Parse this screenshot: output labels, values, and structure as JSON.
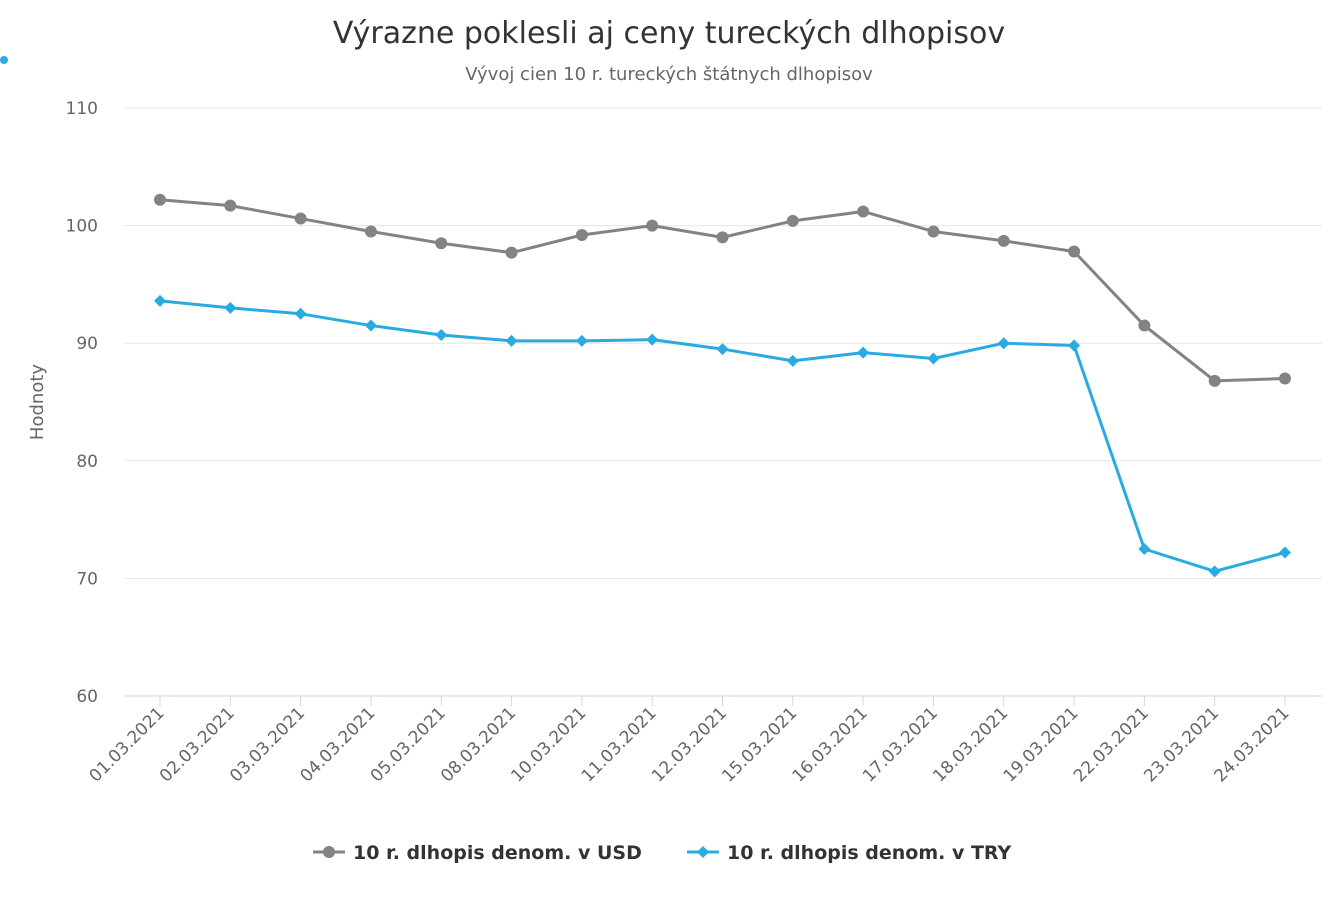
{
  "chart_data": {
    "type": "line",
    "title": "Výrazne poklesli aj ceny tureckých dlhopisov",
    "subtitle": "Vývoj cien 10 r. tureckých štátnych dlhopisov",
    "ylabel": "Hodnoty",
    "xlabel": "",
    "ylim": [
      60,
      110
    ],
    "yticks": [
      110,
      100,
      90,
      80,
      70,
      60
    ],
    "grid": true,
    "legend_position": "bottom",
    "categories": [
      "01.03.2021",
      "02.03.2021",
      "03.03.2021",
      "04.03.2021",
      "05.03.2021",
      "08.03.2021",
      "10.03.2021",
      "11.03.2021",
      "12.03.2021",
      "15.03.2021",
      "16.03.2021",
      "17.03.2021",
      "18.03.2021",
      "19.03.2021",
      "22.03.2021",
      "23.03.2021",
      "24.03.2021"
    ],
    "series": [
      {
        "name": "10 r. dlhopis denom. v USD",
        "color": "#828387",
        "marker": "circle",
        "values": [
          102.2,
          101.7,
          100.6,
          99.5,
          98.5,
          97.7,
          99.2,
          100.0,
          99.0,
          100.4,
          101.2,
          99.5,
          98.7,
          97.8,
          91.5,
          86.8,
          87.0
        ]
      },
      {
        "name": "10 r. dlhopis denom. v TRY",
        "color": "#29abe2",
        "marker": "diamond",
        "values": [
          93.6,
          93.0,
          92.5,
          91.5,
          90.7,
          90.2,
          90.2,
          90.3,
          89.5,
          88.5,
          89.2,
          88.7,
          90.0,
          89.8,
          72.5,
          70.6,
          72.2
        ]
      }
    ]
  }
}
